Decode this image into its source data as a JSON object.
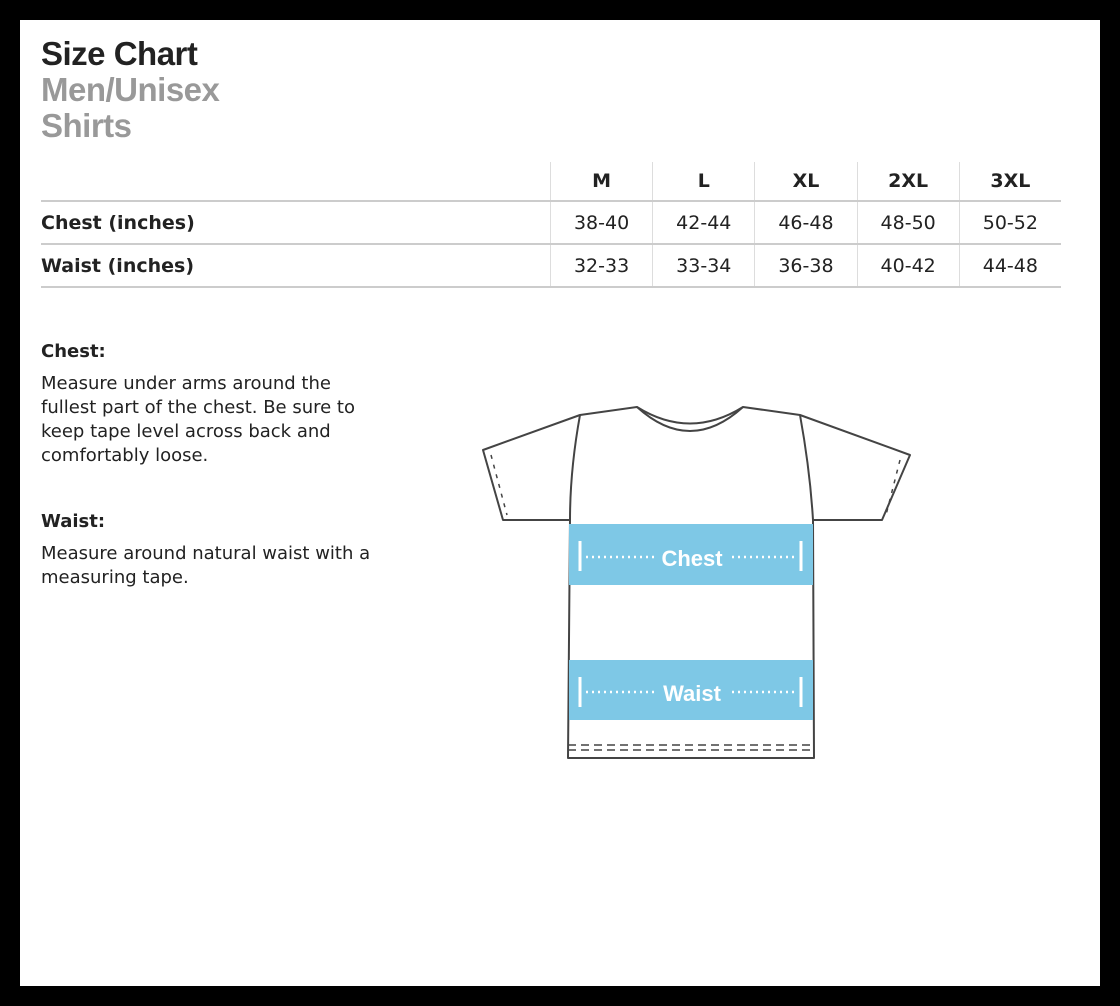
{
  "title": "Size Chart",
  "subtitle1": "Men/Unisex",
  "subtitle2": "Shirts",
  "table": {
    "sizes": [
      "M",
      "L",
      "XL",
      "2XL",
      "3XL"
    ],
    "rows": [
      {
        "label": "Chest (inches)",
        "values": [
          "38-40",
          "42-44",
          "46-48",
          "48-50",
          "50-52"
        ]
      },
      {
        "label": "Waist (inches)",
        "values": [
          "32-33",
          "33-34",
          "36-38",
          "40-42",
          "44-48"
        ]
      }
    ]
  },
  "chest": {
    "heading": "Chest:",
    "text": "Measure under arms around the fullest part of the chest. Be sure to keep tape level across back and comfortably loose."
  },
  "waist": {
    "heading": "Waist:",
    "text": "Measure around natural waist with a measuring tape."
  },
  "diagram": {
    "chest_label": "Chest",
    "waist_label": "Waist",
    "band_color": "#7ec8e6"
  }
}
